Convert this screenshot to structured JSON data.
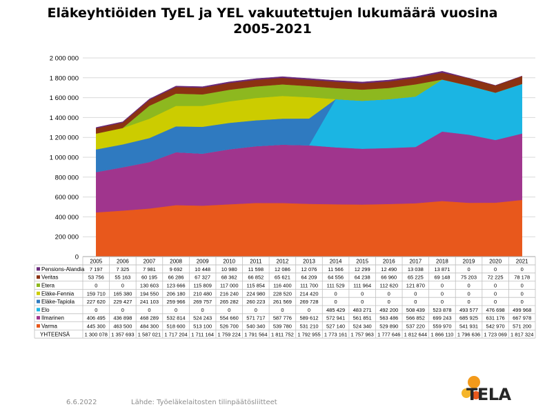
{
  "title_line1": "Eläkeyhtiöiden TyEL ja YEL vakuutettujen lukumäärä vuosina",
  "title_line2": "2005-2021",
  "footer": {
    "date": "6.6.2022",
    "source": "Lähde: Työeläkelaitosten tilinpäätösliitteet"
  },
  "logo": {
    "text": "TELA"
  },
  "chart_data": {
    "type": "area",
    "stacked": true,
    "years": [
      "2005",
      "2006",
      "2007",
      "2008",
      "2009",
      "2010",
      "2011",
      "2012",
      "2013",
      "2014",
      "2015",
      "2016",
      "2017",
      "2018",
      "2019",
      "2020",
      "2021"
    ],
    "yticks": [
      "0",
      "200 000",
      "400 000",
      "600 000",
      "800 000",
      "1 000 000",
      "1 200 000",
      "1 400 000",
      "1 600 000",
      "1 800 000",
      "2 000 000"
    ],
    "ylim": [
      0,
      2000000
    ],
    "grid": true,
    "legend": "table-below",
    "series": [
      {
        "name": "Varma",
        "color": "#e8581c",
        "values": [
          445300,
          463500,
          484300,
          518600,
          513100,
          526700,
          540340,
          539780,
          531210,
          527140,
          524340,
          529890,
          537220,
          559970,
          541931,
          542970,
          571200
        ],
        "labels": [
          "445 300",
          "463 500",
          "484 300",
          "518 600",
          "513 100",
          "526 700",
          "540 340",
          "539 780",
          "531 210",
          "527 140",
          "524 340",
          "529 890",
          "537 220",
          "559 970",
          "541 931",
          "542 970",
          "571 200"
        ]
      },
      {
        "name": "Ilmarinen",
        "color": "#a0358d",
        "values": [
          406495,
          436898,
          468289,
          532814,
          524243,
          554660,
          571717,
          587776,
          589612,
          572941,
          561851,
          563486,
          566852,
          699243,
          685925,
          631176,
          667978
        ],
        "labels": [
          "406 495",
          "436 898",
          "468 289",
          "532 814",
          "524 243",
          "554 660",
          "571 717",
          "587 776",
          "589 612",
          "572 941",
          "561 851",
          "563 486",
          "566 852",
          "699 243",
          "685 925",
          "631 176",
          "667 978"
        ]
      },
      {
        "name": "Elo",
        "color": "#1bb5e3",
        "values": [
          0,
          0,
          0,
          0,
          0,
          0,
          0,
          0,
          0,
          485429,
          483271,
          492200,
          508439,
          523878,
          493577,
          476698,
          499968
        ],
        "labels": [
          "0",
          "0",
          "0",
          "0",
          "0",
          "0",
          "0",
          "0",
          "0",
          "485 429",
          "483 271",
          "492 200",
          "508 439",
          "523 878",
          "493 577",
          "476 698",
          "499 968"
        ]
      },
      {
        "name": "Eläke-Tapiola",
        "color": "#2f7ac0",
        "values": [
          227620,
          229427,
          241103,
          259966,
          269757,
          265282,
          260223,
          261569,
          269728,
          0,
          0,
          0,
          0,
          0,
          0,
          0,
          0
        ],
        "labels": [
          "227 620",
          "229 427",
          "241 103",
          "259 966",
          "269 757",
          "265 282",
          "260 223",
          "261 569",
          "269 728",
          "0",
          "0",
          "0",
          "0",
          "0",
          "0",
          "0",
          "0"
        ]
      },
      {
        "name": "Eläke-Fennia",
        "color": "#cccc00",
        "values": [
          159710,
          165380,
          194550,
          206180,
          210480,
          216240,
          224980,
          228520,
          214420,
          0,
          0,
          0,
          0,
          0,
          0,
          0,
          0
        ],
        "labels": [
          "159 710",
          "165 380",
          "194 550",
          "206 180",
          "210 480",
          "216 240",
          "224 980",
          "228 520",
          "214 420",
          "0",
          "0",
          "0",
          "0",
          "0",
          "0",
          "0",
          "0"
        ]
      },
      {
        "name": "Etera",
        "color": "#8db81f",
        "values": [
          0,
          0,
          130603,
          123666,
          115809,
          117000,
          115854,
          116400,
          111700,
          111529,
          111964,
          112620,
          121870,
          0,
          0,
          0,
          0
        ],
        "labels": [
          "0",
          "0",
          "130 603",
          "123 666",
          "115 809",
          "117 000",
          "115 854",
          "116 400",
          "111 700",
          "111 529",
          "111 964",
          "112 620",
          "121 870",
          "0",
          "0",
          "0",
          "0"
        ]
      },
      {
        "name": "Veritas",
        "color": "#8b3212",
        "values": [
          53756,
          55163,
          60195,
          66286,
          67327,
          68362,
          66852,
          65621,
          64209,
          64556,
          64238,
          66960,
          65225,
          69148,
          75203,
          72225,
          78178
        ],
        "labels": [
          "53 756",
          "55 163",
          "60 195",
          "66 286",
          "67 327",
          "68 362",
          "66 852",
          "65 621",
          "64 209",
          "64 556",
          "64 238",
          "66 960",
          "65 225",
          "69 148",
          "75 203",
          "72 225",
          "78 178"
        ]
      },
      {
        "name": "Pensions-Alandia",
        "color": "#6a2a7c",
        "values": [
          7197,
          7325,
          7981,
          9692,
          10448,
          10980,
          11598,
          12086,
          12076,
          11566,
          12299,
          12490,
          13038,
          13871,
          0,
          0,
          0
        ],
        "labels": [
          "7 197",
          "7 325",
          "7 981",
          "9 692",
          "10 448",
          "10 980",
          "11 598",
          "12 086",
          "12 076",
          "11 566",
          "12 299",
          "12 490",
          "13 038",
          "13 871",
          "0",
          "0",
          "0"
        ]
      }
    ],
    "total_label": "YHTEENSÄ",
    "totals": [
      "1 300 078",
      "1 357 693",
      "1 587 021",
      "1 717 204",
      "1 711 164",
      "1 759 224",
      "1 791 564",
      "1 811 752",
      "1 792 955",
      "1 773 161",
      "1 757 963",
      "1 777 646",
      "1 812 644",
      "1 866 110",
      "1 796 636",
      "1 723 069",
      "1 817 324"
    ]
  }
}
